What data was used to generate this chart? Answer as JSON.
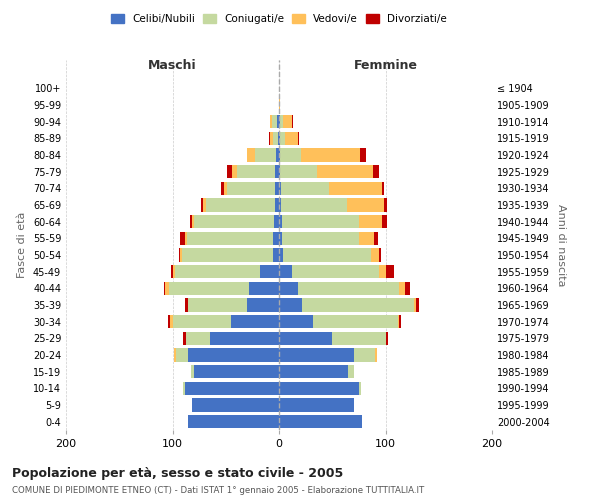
{
  "age_groups": [
    "0-4",
    "5-9",
    "10-14",
    "15-19",
    "20-24",
    "25-29",
    "30-34",
    "35-39",
    "40-44",
    "45-49",
    "50-54",
    "55-59",
    "60-64",
    "65-69",
    "70-74",
    "75-79",
    "80-84",
    "85-89",
    "90-94",
    "95-99",
    "100+"
  ],
  "birth_years": [
    "2000-2004",
    "1995-1999",
    "1990-1994",
    "1985-1989",
    "1980-1984",
    "1975-1979",
    "1970-1974",
    "1965-1969",
    "1960-1964",
    "1955-1959",
    "1950-1954",
    "1945-1949",
    "1940-1944",
    "1935-1939",
    "1930-1934",
    "1925-1929",
    "1920-1924",
    "1915-1919",
    "1910-1914",
    "1905-1909",
    "≤ 1904"
  ],
  "males": {
    "celibi": [
      85,
      82,
      88,
      80,
      85,
      65,
      45,
      30,
      28,
      18,
      6,
      6,
      5,
      4,
      4,
      4,
      3,
      1,
      2,
      0,
      0
    ],
    "coniugati": [
      0,
      0,
      2,
      3,
      12,
      22,
      55,
      55,
      75,
      80,
      85,
      80,
      75,
      65,
      45,
      35,
      20,
      5,
      5,
      0,
      0
    ],
    "vedovi": [
      0,
      0,
      0,
      0,
      2,
      0,
      2,
      0,
      4,
      2,
      2,
      2,
      2,
      2,
      3,
      5,
      7,
      2,
      1,
      0,
      0
    ],
    "divorziati": [
      0,
      0,
      0,
      0,
      0,
      3,
      2,
      3,
      1,
      1,
      1,
      5,
      2,
      2,
      2,
      5,
      0,
      1,
      0,
      0,
      0
    ]
  },
  "females": {
    "nubili": [
      78,
      70,
      75,
      65,
      70,
      50,
      32,
      22,
      18,
      12,
      4,
      3,
      3,
      2,
      2,
      1,
      1,
      1,
      1,
      0,
      0
    ],
    "coniugate": [
      0,
      0,
      2,
      5,
      20,
      50,
      80,
      105,
      95,
      82,
      82,
      72,
      72,
      62,
      45,
      35,
      20,
      5,
      3,
      0,
      0
    ],
    "vedove": [
      0,
      0,
      0,
      0,
      2,
      0,
      1,
      2,
      5,
      6,
      8,
      14,
      22,
      35,
      50,
      52,
      55,
      12,
      8,
      1,
      0
    ],
    "divorziate": [
      0,
      0,
      0,
      0,
      0,
      2,
      2,
      2,
      5,
      8,
      2,
      4,
      4,
      2,
      2,
      6,
      6,
      1,
      1,
      0,
      0
    ]
  },
  "colors": {
    "celibi_nubili": "#4472c4",
    "coniugati": "#c5d9a0",
    "vedovi": "#ffc05a",
    "divorziati": "#c00000"
  },
  "title": "Popolazione per età, sesso e stato civile - 2005",
  "subtitle": "COMUNE DI PIEDIMONTE ETNEO (CT) - Dati ISTAT 1° gennaio 2005 - Elaborazione TUTTITALIA.IT",
  "ylabel_left": "Fasce di età",
  "ylabel_right": "Anni di nascita",
  "xlabel_left": "Maschi",
  "xlabel_right": "Femmine",
  "xlim": 200,
  "background_color": "#ffffff",
  "grid_color": "#cccccc"
}
